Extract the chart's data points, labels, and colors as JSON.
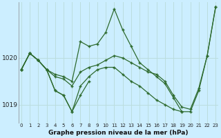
{
  "title": "Graphe pression niveau de la mer (hPa)",
  "bg_color": "#cceeff",
  "line_color": "#2d6a2d",
  "grid_color": "#bbdddd",
  "yticks": [
    1019,
    1020
  ],
  "xticks": [
    0,
    1,
    2,
    3,
    4,
    5,
    6,
    7,
    8,
    9,
    10,
    11,
    12,
    13,
    14,
    15,
    16,
    17,
    18,
    19,
    20,
    21,
    22,
    23
  ],
  "ylim": [
    1018.6,
    1021.2
  ],
  "xlim": [
    -0.3,
    23.3
  ],
  "series": [
    {
      "x": [
        0,
        1,
        2,
        3,
        4,
        5,
        6,
        7,
        8,
        9,
        10,
        11,
        12,
        13,
        14,
        15,
        16,
        17,
        18,
        19,
        20,
        21,
        22,
        23
      ],
      "y": [
        1019.75,
        1020.1,
        1019.95,
        1019.75,
        1019.65,
        1019.6,
        1019.5,
        1020.35,
        1020.25,
        1020.3,
        1020.55,
        1021.05,
        1020.6,
        1020.25,
        1019.9,
        1019.75,
        1019.6,
        1019.45,
        1019.15,
        1018.85,
        1018.85,
        1019.3,
        1020.05,
        1021.1
      ]
    },
    {
      "x": [
        0,
        1,
        2,
        3,
        4,
        5,
        6,
        7,
        8,
        9,
        10,
        11,
        12,
        13,
        14,
        15,
        16,
        17,
        18,
        19,
        20,
        21,
        22,
        23
      ],
      "y": [
        1019.75,
        1020.1,
        1019.95,
        1019.75,
        1019.6,
        1019.55,
        1019.4,
        1019.7,
        1019.8,
        1019.85,
        1019.95,
        1020.05,
        1020.0,
        1019.9,
        1019.8,
        1019.7,
        1019.65,
        1019.5,
        1019.2,
        1018.95,
        1018.9,
        1019.35,
        1020.05,
        1021.1
      ]
    },
    {
      "x": [
        0,
        1,
        2,
        3,
        4,
        5,
        6,
        7,
        8
      ],
      "y": [
        1019.75,
        1020.1,
        1019.95,
        1019.75,
        1019.3,
        1019.2,
        1018.85,
        1019.2,
        1019.5
      ]
    },
    {
      "x": [
        0,
        1,
        2,
        3,
        4,
        5,
        6,
        7,
        8,
        9,
        10,
        11,
        12,
        13,
        14,
        15,
        16,
        17,
        18,
        19
      ],
      "y": [
        1019.75,
        1020.1,
        1019.95,
        1019.75,
        1019.3,
        1019.2,
        1018.85,
        1019.4,
        1019.6,
        1019.75,
        1019.8,
        1019.8,
        1019.65,
        1019.5,
        1019.4,
        1019.25,
        1019.1,
        1019.0,
        1018.9,
        1018.85
      ]
    }
  ]
}
